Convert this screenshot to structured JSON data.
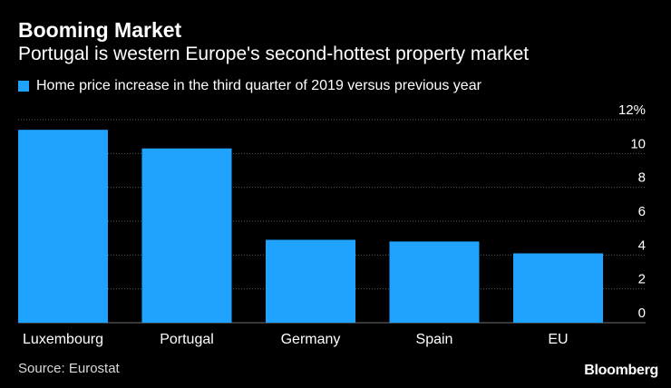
{
  "header": {
    "title": "Booming Market",
    "subtitle": "Portugal is western Europe's second-hottest property market"
  },
  "legend": {
    "label": "Home price increase in the third quarter of 2019 versus previous year"
  },
  "footer": {
    "source": "Source: Eurostat",
    "brand": "Bloomberg"
  },
  "colors": {
    "bar": "#1fa3ff",
    "grid": "#5a5a5a",
    "background": "#000000"
  },
  "chart_data": {
    "type": "bar",
    "title": "Booming Market",
    "subtitle": "Portugal is western Europe's second-hottest property market",
    "categories": [
      "Luxembourg",
      "Portugal",
      "Germany",
      "Spain",
      "EU"
    ],
    "series": [
      {
        "name": "Home price increase in the third quarter of 2019 versus previous year",
        "values": [
          11.4,
          10.3,
          4.9,
          4.8,
          4.1
        ]
      }
    ],
    "ylim": [
      0,
      12
    ],
    "yticks": [
      0,
      2,
      4,
      6,
      8,
      10,
      12
    ],
    "ytick_labels": [
      "0",
      "2",
      "4",
      "6",
      "8",
      "10",
      "12%"
    ],
    "yaxis_position": "right",
    "grid": true,
    "legend_position": "top-left",
    "xlabel": "",
    "ylabel": ""
  }
}
